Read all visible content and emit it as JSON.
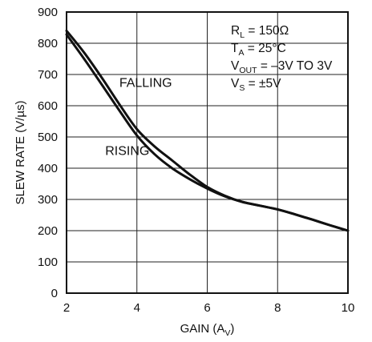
{
  "chart_data": {
    "type": "line",
    "xlabel": {
      "main": "GAIN (A",
      "sub": "V",
      "close": ")"
    },
    "ylabel": "SLEW RATE (V/µs)",
    "xlim": [
      2,
      10
    ],
    "ylim": [
      0,
      900
    ],
    "x_ticks": [
      2,
      4,
      6,
      8,
      10
    ],
    "y_ticks": [
      0,
      100,
      200,
      300,
      400,
      500,
      600,
      700,
      800,
      900
    ],
    "grid": true,
    "series": [
      {
        "name": "FALLING",
        "x": [
          2.0,
          2.5,
          3.0,
          3.5,
          4.0,
          4.5,
          5.0,
          5.5,
          6.0,
          6.5,
          7.0,
          7.5,
          8.0,
          8.5,
          9.0,
          9.5,
          10.0
        ],
        "y": [
          840,
          770,
          690,
          605,
          525,
          470,
          425,
          380,
          340,
          312,
          292,
          280,
          268,
          252,
          235,
          217,
          200
        ]
      },
      {
        "name": "RISING",
        "x": [
          2.0,
          2.5,
          3.0,
          3.5,
          4.0,
          4.5,
          5.0,
          5.5,
          6.0,
          6.5,
          7.0,
          7.5,
          8.0,
          8.5,
          9.0,
          9.5,
          10.0
        ],
        "y": [
          828,
          750,
          668,
          585,
          505,
          445,
          400,
          365,
          335,
          310,
          292,
          280,
          268,
          252,
          235,
          217,
          200
        ]
      }
    ],
    "annotations": {
      "falling": "FALLING",
      "rising": "RISING"
    },
    "conditions": [
      {
        "main": "R",
        "sub": "L",
        "rest": " = 150Ω"
      },
      {
        "main": "T",
        "sub": "A",
        "rest": " = 25°C"
      },
      {
        "main": "V",
        "sub": "OUT",
        "rest": " = –3V TO 3V"
      },
      {
        "main": "V",
        "sub": "S",
        "rest": " = ±5V"
      }
    ]
  }
}
